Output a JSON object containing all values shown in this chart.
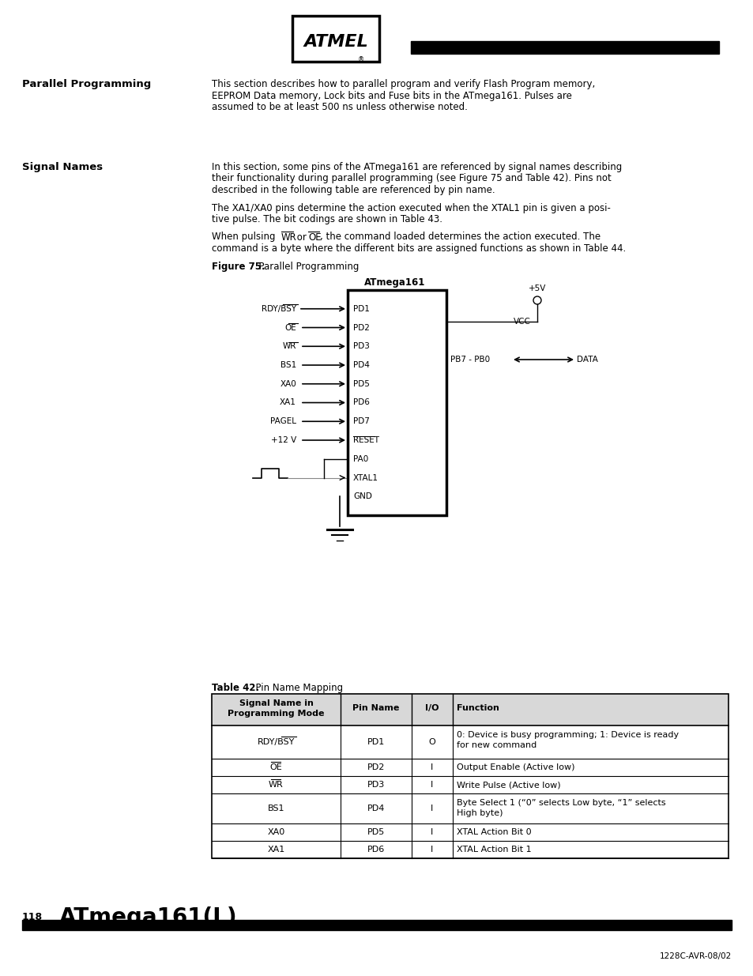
{
  "page_bg": "#ffffff",
  "title_left": "Parallel Programming",
  "section2_left": "Signal Names",
  "para1": "This section describes how to parallel program and verify Flash Program memory,\nEEPROM Data memory, Lock bits and Fuse bits in the ATmega161. Pulses are\nassumed to be at least 500 ns unless otherwise noted.",
  "para2a": "In this section, some pins of the ATmega161 are referenced by signal names describing\ntheir functionality during parallel programming (see Figure 75 and Table 42). Pins not\ndescribed in the following table are referenced by pin name.",
  "para2b": "The XA1/XA0 pins determine the action executed when the XTAL1 pin is given a posi-\ntive pulse. The bit codings are shown in Table 43.",
  "para2c_pre": "When pulsing ",
  "para2c_mid": " or ",
  "para2c_post": ", the command loaded determines the action executed. The",
  "para2c_line2": "command is a byte where the different bits are assigned functions as shown in Table 44.",
  "fig_caption_bold": "Figure 75.",
  "fig_caption_rest": "  Parallel Programming",
  "chip_label": "ATmega161",
  "footer_page": "118",
  "footer_title": "ATmega161(L)",
  "footer_ref": "1228C-AVR-08/02",
  "table_title_bold": "Table 42.",
  "table_title_rest": "  Pin Name Mapping",
  "table_headers": [
    "Signal Name in\nProgramming Mode",
    "Pin Name",
    "I/O",
    "Function"
  ],
  "table_rows": [
    [
      "RDY/BSY",
      "PD1",
      "O",
      "0: Device is busy programming; 1: Device is ready\nfor new command"
    ],
    [
      "OE",
      "PD2",
      "I",
      "Output Enable (Active low)"
    ],
    [
      "WR",
      "PD3",
      "I",
      "Write Pulse (Active low)"
    ],
    [
      "BS1",
      "PD4",
      "I",
      "Byte Select 1 (“0” selects Low byte, “1” selects\nHigh byte)"
    ],
    [
      "XA0",
      "PD5",
      "I",
      "XTAL Action Bit 0"
    ],
    [
      "XA1",
      "PD6",
      "I",
      "XTAL Action Bit 1"
    ]
  ],
  "left_pins": [
    "RDY/BSY",
    "OE",
    "WR",
    "BS1",
    "XA0",
    "XA1",
    "PAGEL",
    "+12 V"
  ],
  "left_pins_overline": [
    1,
    1,
    1,
    0,
    0,
    0,
    0,
    0
  ],
  "left_pins_output": [
    1,
    0,
    0,
    0,
    0,
    0,
    0,
    0
  ],
  "right_labels_inside": [
    "PD1",
    "PD2",
    "PD3",
    "PD4",
    "PD5",
    "PD6",
    "PD7",
    "RESET",
    "PA0",
    "XTAL1",
    "GND"
  ],
  "right_labels_overline": [
    0,
    0,
    0,
    0,
    0,
    0,
    0,
    1,
    0,
    0,
    0
  ]
}
